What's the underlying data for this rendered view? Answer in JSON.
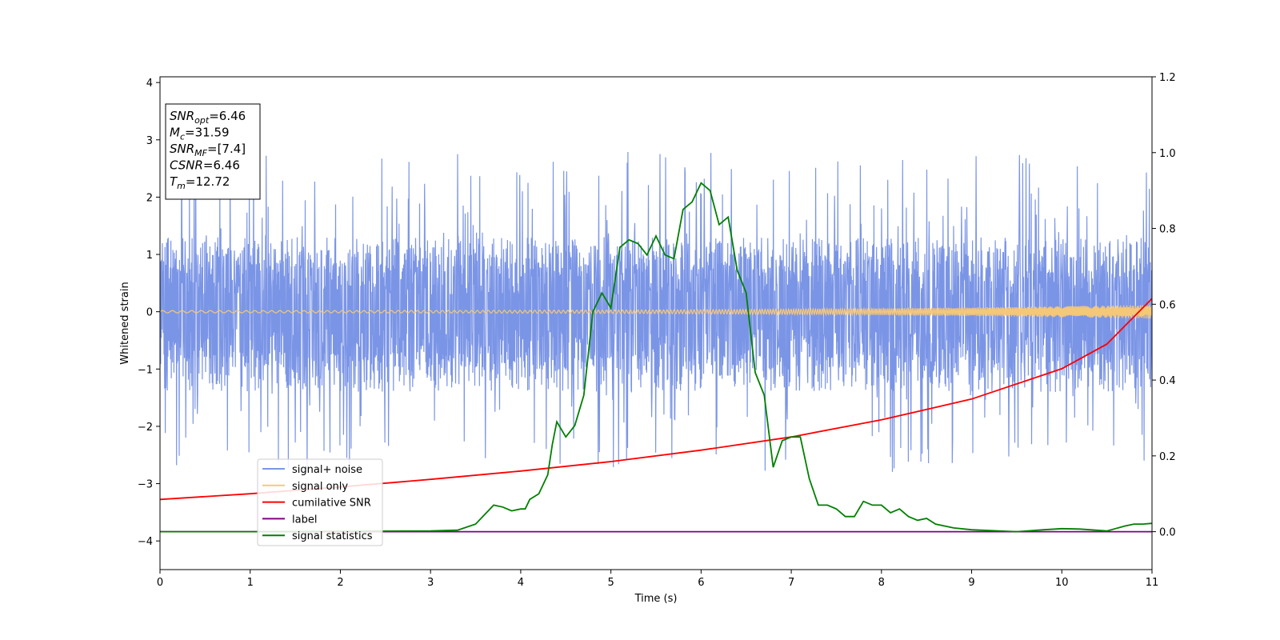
{
  "chart_data": {
    "type": "line",
    "xlabel": "Time (s)",
    "ylabel": "Whitened strain",
    "xlim": [
      0,
      11
    ],
    "ylim_left": [
      -4.5,
      4.1
    ],
    "ylim_right": [
      -0.1,
      1.2
    ],
    "x_ticks": [
      0,
      1,
      2,
      3,
      4,
      5,
      6,
      7,
      8,
      9,
      10,
      11
    ],
    "y_ticks_left": [
      -4,
      -3,
      -2,
      -1,
      0,
      1,
      2,
      3,
      4
    ],
    "y_ticks_right": [
      0.0,
      0.2,
      0.4,
      0.6,
      0.8,
      1.0,
      1.2
    ],
    "y_tick_labels_left": [
      "−4",
      "−3",
      "−2",
      "−1",
      "0",
      "1",
      "2",
      "3",
      "4"
    ],
    "y_tick_labels_right": [
      "0.0",
      "0.2",
      "0.4",
      "0.6",
      "0.8",
      "1.0",
      "1.2"
    ],
    "grid": false,
    "legend_position": "lower-left",
    "annotation": {
      "lines": [
        {
          "var": "SNR",
          "sub": "opt",
          "value": "=6.46"
        },
        {
          "var": "M",
          "sub": "c",
          "value": "=31.59"
        },
        {
          "var": "SNR",
          "sub": "MF",
          "value": "=[7.4]"
        },
        {
          "var": "CSNR",
          "sub": "",
          "value": "=6.46"
        },
        {
          "var": "T",
          "sub": "m",
          "value": "=12.72"
        }
      ]
    },
    "series": [
      {
        "name": "signal+ noise",
        "color": "#7b95e6",
        "axis": "left",
        "kind": "noise",
        "typical_range": [
          -1.4,
          1.3
        ],
        "extreme_range": [
          -2.95,
          3.3
        ]
      },
      {
        "name": "signal only",
        "color": "#f5c878",
        "axis": "left",
        "kind": "chirp",
        "amplitude_start": 0.02,
        "amplitude_end": 0.12
      },
      {
        "name": "cumilative SNR",
        "color": "#ff0000",
        "axis": "right",
        "x": [
          0,
          1,
          2,
          3,
          4,
          5,
          6,
          7,
          8,
          9,
          10,
          10.5,
          11
        ],
        "y": [
          0.085,
          0.1,
          0.118,
          0.138,
          0.16,
          0.185,
          0.215,
          0.25,
          0.295,
          0.35,
          0.43,
          0.495,
          0.615
        ]
      },
      {
        "name": "label",
        "color": "#800080",
        "axis": "right",
        "x": [
          0,
          11
        ],
        "y": [
          0.0,
          0.0
        ]
      },
      {
        "name": "signal statistics",
        "color": "#008000",
        "axis": "right",
        "x": [
          0,
          1,
          2,
          3,
          3.3,
          3.5,
          3.6,
          3.7,
          3.8,
          3.9,
          4.0,
          4.05,
          4.1,
          4.2,
          4.3,
          4.35,
          4.4,
          4.5,
          4.6,
          4.7,
          4.8,
          4.9,
          5.0,
          5.1,
          5.2,
          5.3,
          5.4,
          5.5,
          5.6,
          5.7,
          5.8,
          5.9,
          6.0,
          6.1,
          6.2,
          6.3,
          6.4,
          6.5,
          6.6,
          6.7,
          6.8,
          6.9,
          7.0,
          7.1,
          7.2,
          7.3,
          7.4,
          7.5,
          7.6,
          7.7,
          7.8,
          7.9,
          8.0,
          8.1,
          8.2,
          8.3,
          8.4,
          8.5,
          8.6,
          8.8,
          9.0,
          9.5,
          9.8,
          10.0,
          10.2,
          10.5,
          10.7,
          10.8,
          10.9,
          11.0
        ],
        "y": [
          0.0,
          0.0,
          0.001,
          0.002,
          0.004,
          0.02,
          0.045,
          0.07,
          0.065,
          0.055,
          0.06,
          0.06,
          0.085,
          0.1,
          0.15,
          0.23,
          0.29,
          0.25,
          0.28,
          0.36,
          0.58,
          0.63,
          0.59,
          0.75,
          0.77,
          0.76,
          0.73,
          0.78,
          0.73,
          0.72,
          0.85,
          0.87,
          0.92,
          0.9,
          0.81,
          0.83,
          0.69,
          0.63,
          0.42,
          0.36,
          0.17,
          0.24,
          0.25,
          0.25,
          0.14,
          0.07,
          0.07,
          0.06,
          0.04,
          0.04,
          0.08,
          0.07,
          0.07,
          0.05,
          0.06,
          0.04,
          0.03,
          0.035,
          0.02,
          0.01,
          0.005,
          0.0,
          0.005,
          0.008,
          0.007,
          0.002,
          0.015,
          0.02,
          0.02,
          0.022
        ]
      }
    ]
  }
}
